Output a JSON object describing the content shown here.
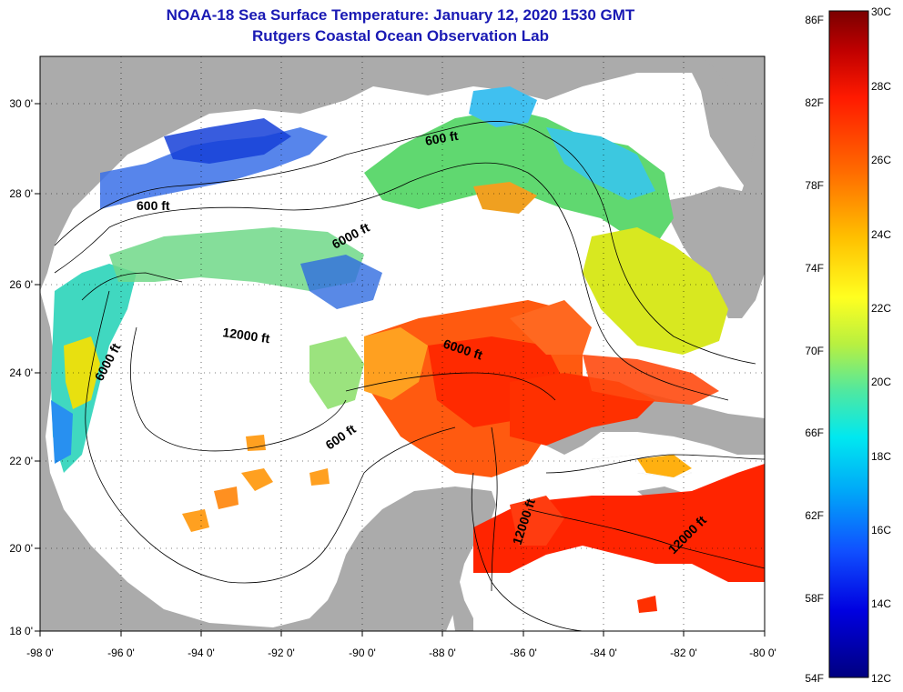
{
  "title": {
    "line1": "NOAA-18 Sea Surface Temperature:  January 12, 2020 1530 GMT",
    "line2": "Rutgers Coastal Ocean Observation Lab"
  },
  "map": {
    "extent": {
      "lon": [
        -98,
        -80
      ],
      "lat": [
        18,
        31
      ]
    },
    "colors": {
      "land": "#ababab",
      "cloud": "#ffffff",
      "contour": "#000000",
      "title": "#1a1ab4"
    },
    "lat_labels": [
      "30 0'",
      "28 0'",
      "26 0'",
      "24 0'",
      "22 0'",
      "20 0'",
      "18 0'"
    ],
    "lon_labels": [
      "-98 0'",
      "-96 0'",
      "-94 0'",
      "-92 0'",
      "-90 0'",
      "-88 0'",
      "-86 0'",
      "-84 0'",
      "-82 0'",
      "-80 0'"
    ],
    "contour_labels": [
      "600 ft",
      "600 ft",
      "6000 ft",
      "12000 ft",
      "6000 ft",
      "6000 ft",
      "600 ft",
      "12000 ft",
      "12000 ft"
    ]
  },
  "colorbar": {
    "fahrenheit_labels": [
      "86F",
      "82F",
      "78F",
      "74F",
      "70F",
      "66F",
      "62F",
      "58F",
      "54F"
    ],
    "celsius_labels": [
      "30C",
      "28C",
      "26C",
      "24C",
      "22C",
      "20C",
      "18C",
      "16C",
      "14C",
      "12C"
    ],
    "range_c": [
      12,
      30
    ]
  }
}
